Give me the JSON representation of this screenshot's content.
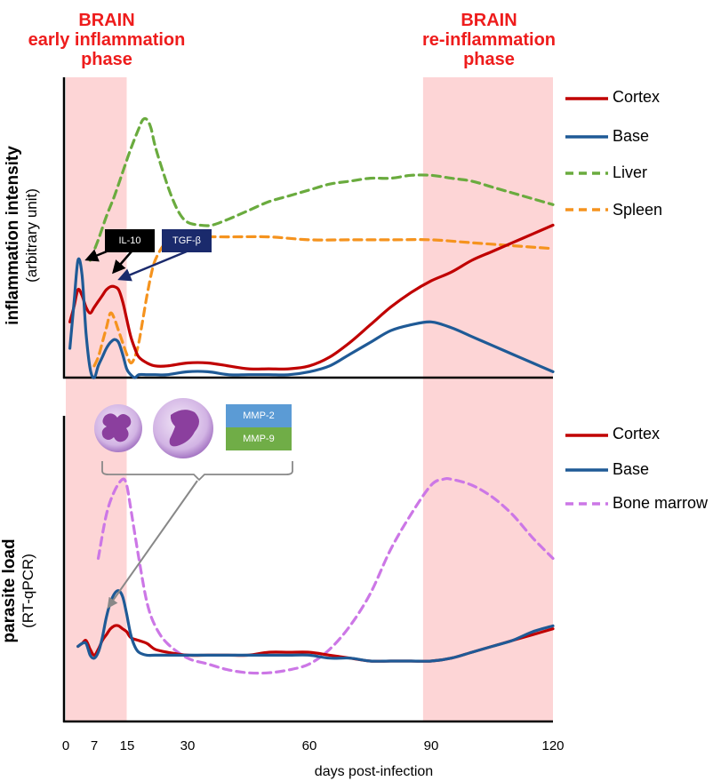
{
  "phases": [
    {
      "line1": "BRAIN",
      "line2": "early inflammation",
      "line3": "phase",
      "x_range": [
        0,
        15
      ]
    },
    {
      "line1": "BRAIN",
      "line2": "re-inflammation",
      "line3": "phase",
      "x_range": [
        88,
        120
      ]
    }
  ],
  "colors": {
    "cortex": "#c00000",
    "base": "#1f5a96",
    "liver": "#6aab3e",
    "spleen": "#f5931e",
    "bone_marrow": "#cc77e6",
    "phase_shade": "#fdd5d6",
    "phase_title": "#ee1c1c",
    "il10_box": "#000000",
    "tgfb_box": "#1a2a6c",
    "mmp2_box": "#5b9bd5",
    "mmp9_box": "#70ad47"
  },
  "annotations": {
    "il10": "IL-10",
    "tgfb": "TGF-β",
    "mmp2": "MMP-2",
    "mmp9": "MMP-9",
    "cells": [
      "neutrophil-icon",
      "monocyte-icon"
    ]
  },
  "chart_data": [
    {
      "type": "line",
      "ylabel": "inflammation intensity",
      "ylabel_sub": "(arbitrary unit)",
      "xlim": [
        0,
        120
      ],
      "ylim": [
        0,
        100
      ],
      "legend_placement": "right",
      "series": [
        {
          "name": "Cortex",
          "style": "solid",
          "color": "#c00000",
          "x": [
            1,
            2,
            3,
            4,
            5,
            6,
            7,
            8,
            9,
            10,
            11,
            12,
            13,
            14,
            15,
            16,
            17,
            18,
            20,
            22,
            25,
            30,
            35,
            40,
            45,
            50,
            55,
            60,
            65,
            70,
            75,
            80,
            85,
            90,
            95,
            100,
            105,
            110,
            115,
            120
          ],
          "y": [
            19,
            24,
            30,
            28,
            24,
            22,
            24,
            26,
            28,
            30,
            31,
            31,
            30,
            26,
            20,
            14,
            10,
            7,
            5,
            4,
            4,
            5,
            5,
            4,
            3,
            3,
            3,
            4,
            7,
            12,
            18,
            24,
            29,
            33,
            36,
            40,
            43,
            46,
            49,
            52
          ]
        },
        {
          "name": "Base",
          "style": "solid",
          "color": "#1f5a96",
          "x": [
            1,
            2,
            3,
            4,
            5,
            6,
            7,
            8,
            9,
            10,
            11,
            12,
            13,
            14,
            15,
            16,
            17,
            18,
            20,
            22,
            25,
            30,
            35,
            40,
            45,
            50,
            55,
            60,
            65,
            70,
            75,
            80,
            85,
            90,
            95,
            100,
            105,
            110,
            115,
            120
          ],
          "y": [
            10,
            25,
            40,
            35,
            15,
            3,
            0,
            4,
            7,
            10,
            12,
            13,
            12,
            8,
            3,
            1,
            0,
            1,
            1,
            1,
            1,
            2,
            2,
            1,
            1,
            1,
            1,
            2,
            4,
            8,
            12,
            16,
            18,
            19,
            17,
            14,
            11,
            8,
            5,
            2
          ]
        },
        {
          "name": "Liver",
          "style": "dashed",
          "color": "#6aab3e",
          "x": [
            6,
            8,
            10,
            12,
            14,
            16,
            18,
            19,
            20,
            21,
            22,
            24,
            26,
            28,
            30,
            33,
            36,
            40,
            45,
            50,
            55,
            60,
            65,
            70,
            75,
            80,
            85,
            90,
            95,
            100,
            105,
            110,
            115,
            120
          ],
          "y": [
            40,
            47,
            55,
            62,
            70,
            78,
            85,
            88,
            88,
            85,
            79,
            70,
            62,
            56,
            53,
            52,
            52,
            54,
            57,
            60,
            62,
            64,
            66,
            67,
            68,
            68,
            69,
            69,
            68,
            67,
            65,
            63,
            61,
            59
          ]
        },
        {
          "name": "Spleen",
          "style": "dashed",
          "color": "#f5931e",
          "x": [
            7,
            8,
            9,
            10,
            11,
            12,
            13,
            14,
            15,
            16,
            17,
            18,
            19,
            20,
            21,
            22,
            24,
            26,
            30,
            40,
            50,
            60,
            70,
            80,
            90,
            100,
            110,
            120
          ],
          "y": [
            4,
            7,
            12,
            17,
            22,
            20,
            16,
            12,
            8,
            5,
            7,
            12,
            20,
            28,
            35,
            40,
            45,
            47,
            48,
            48,
            48,
            47,
            47,
            47,
            47,
            46,
            45,
            44
          ]
        }
      ]
    },
    {
      "type": "line",
      "ylabel": "parasite load",
      "ylabel_sub": "(RT-qPCR)",
      "xlabel": "days post-infection",
      "x_ticks": [
        0,
        7,
        15,
        30,
        60,
        90,
        120
      ],
      "xlim": [
        0,
        120
      ],
      "ylim": [
        0,
        100
      ],
      "legend_placement": "right",
      "series": [
        {
          "name": "Cortex",
          "style": "solid",
          "color": "#c00000",
          "x": [
            3,
            4,
            5,
            6,
            7,
            8,
            9,
            10,
            11,
            12,
            13,
            14,
            15,
            16,
            18,
            20,
            22,
            25,
            30,
            35,
            40,
            45,
            50,
            55,
            60,
            65,
            70,
            75,
            80,
            85,
            90,
            95,
            100,
            105,
            110,
            115,
            120
          ],
          "y": [
            15,
            16,
            17,
            14,
            12,
            14,
            17,
            19,
            21,
            22,
            22,
            21,
            20,
            18,
            17,
            16,
            14,
            13,
            12,
            12,
            12,
            12,
            13,
            13,
            13,
            12,
            11,
            10,
            10,
            10,
            10,
            11,
            13,
            15,
            17,
            19,
            21
          ]
        },
        {
          "name": "Base",
          "style": "solid",
          "color": "#1f5a96",
          "x": [
            3,
            4,
            5,
            6,
            7,
            8,
            9,
            10,
            11,
            12,
            13,
            14,
            15,
            16,
            17,
            18,
            20,
            22,
            25,
            30,
            35,
            40,
            45,
            50,
            55,
            60,
            65,
            70,
            75,
            80,
            85,
            90,
            95,
            100,
            105,
            110,
            115,
            120
          ],
          "y": [
            15,
            16,
            16,
            12,
            11,
            13,
            18,
            25,
            30,
            33,
            34,
            32,
            26,
            19,
            15,
            13,
            12,
            12,
            12,
            12,
            12,
            12,
            12,
            12,
            12,
            12,
            11,
            11,
            10,
            10,
            10,
            10,
            11,
            13,
            15,
            17,
            20,
            22
          ]
        },
        {
          "name": "Bone marrow",
          "style": "dashed",
          "color": "#cc77e6",
          "x": [
            8,
            10,
            12,
            14,
            15,
            16,
            18,
            20,
            22,
            25,
            30,
            35,
            40,
            45,
            50,
            55,
            60,
            65,
            70,
            75,
            80,
            85,
            90,
            93,
            95,
            100,
            105,
            110,
            115,
            120
          ],
          "y": [
            45,
            60,
            68,
            72,
            70,
            62,
            45,
            30,
            22,
            16,
            11,
            9,
            7,
            6,
            6,
            7,
            9,
            14,
            22,
            33,
            48,
            60,
            70,
            72,
            72,
            70,
            66,
            60,
            52,
            45
          ]
        }
      ]
    }
  ]
}
